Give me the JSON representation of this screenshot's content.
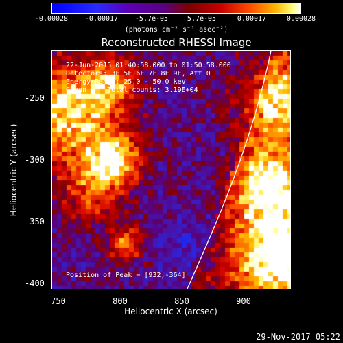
{
  "colorbar": {
    "ticks": [
      "-0.00028",
      "-0.00017",
      "-5.7e-05",
      "5.7e-05",
      "0.00017",
      "0.00028"
    ],
    "unit": "(photons cm⁻² s⁻¹ asec⁻²)"
  },
  "title": "Reconstructed RHESSI Image",
  "info": {
    "time": "22-Jun-2015 01:40:58.000 to 01:50:58.000",
    "detectors": "Detectors: 3F 5F 6F 7F 8F 9F, Att 0",
    "energy": "Energy Range: 25.0 - 50.0 keV",
    "clean": "Clean     Total counts: 3.19E+04",
    "peak": "Position of Peak = [932,-364]"
  },
  "axes": {
    "xlabel": "Heliocentric X (arcsec)",
    "ylabel": "Heliocentric Y (arcsec)",
    "xticks": [
      "750",
      "800",
      "850",
      "900"
    ],
    "yticks": [
      "-250",
      "-300",
      "-350",
      "-400"
    ]
  },
  "footer": "29-Nov-2017 05:22",
  "colors": {
    "background": "#000000",
    "limb": "#ffffff"
  }
}
